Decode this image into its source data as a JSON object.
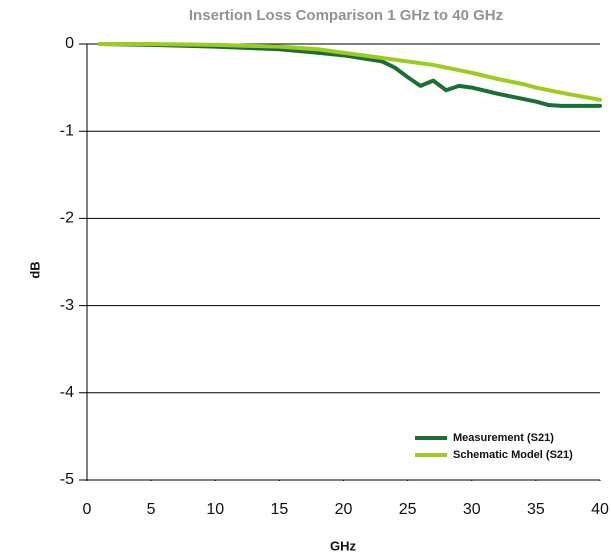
{
  "chart_data": {
    "type": "line",
    "title": "Insertion Loss Comparison 1 GHz to 40 GHz",
    "x_label": "GHz",
    "y_label": "dB",
    "x": [
      1,
      5,
      10,
      15,
      18,
      20,
      23,
      24,
      25,
      26,
      27,
      28,
      29,
      30,
      32,
      34,
      35,
      36,
      37,
      40
    ],
    "series": [
      {
        "name": "Measurement (S21)",
        "color": "#1b6f36",
        "values": [
          0,
          -0.01,
          -0.03,
          -0.06,
          -0.1,
          -0.13,
          -0.2,
          -0.27,
          -0.38,
          -0.48,
          -0.42,
          -0.53,
          -0.48,
          -0.5,
          -0.57,
          -0.63,
          -0.66,
          -0.7,
          -0.71,
          -0.71
        ]
      },
      {
        "name": "Schematic Model (S21)",
        "color": "#9ccc1e",
        "values": [
          0,
          0,
          -0.01,
          -0.03,
          -0.06,
          -0.1,
          -0.16,
          -0.18,
          -0.2,
          -0.22,
          -0.24,
          -0.27,
          -0.3,
          -0.33,
          -0.4,
          -0.46,
          -0.5,
          -0.53,
          -0.56,
          -0.64
        ]
      }
    ],
    "xlim": [
      0,
      40
    ],
    "xticks": [
      0,
      5,
      10,
      15,
      20,
      25,
      30,
      35,
      40
    ],
    "ylim": [
      -5,
      0
    ],
    "yticks": [
      -5,
      -4,
      -3,
      -2,
      -1,
      0
    ],
    "grid": true,
    "legend": "lower right"
  }
}
